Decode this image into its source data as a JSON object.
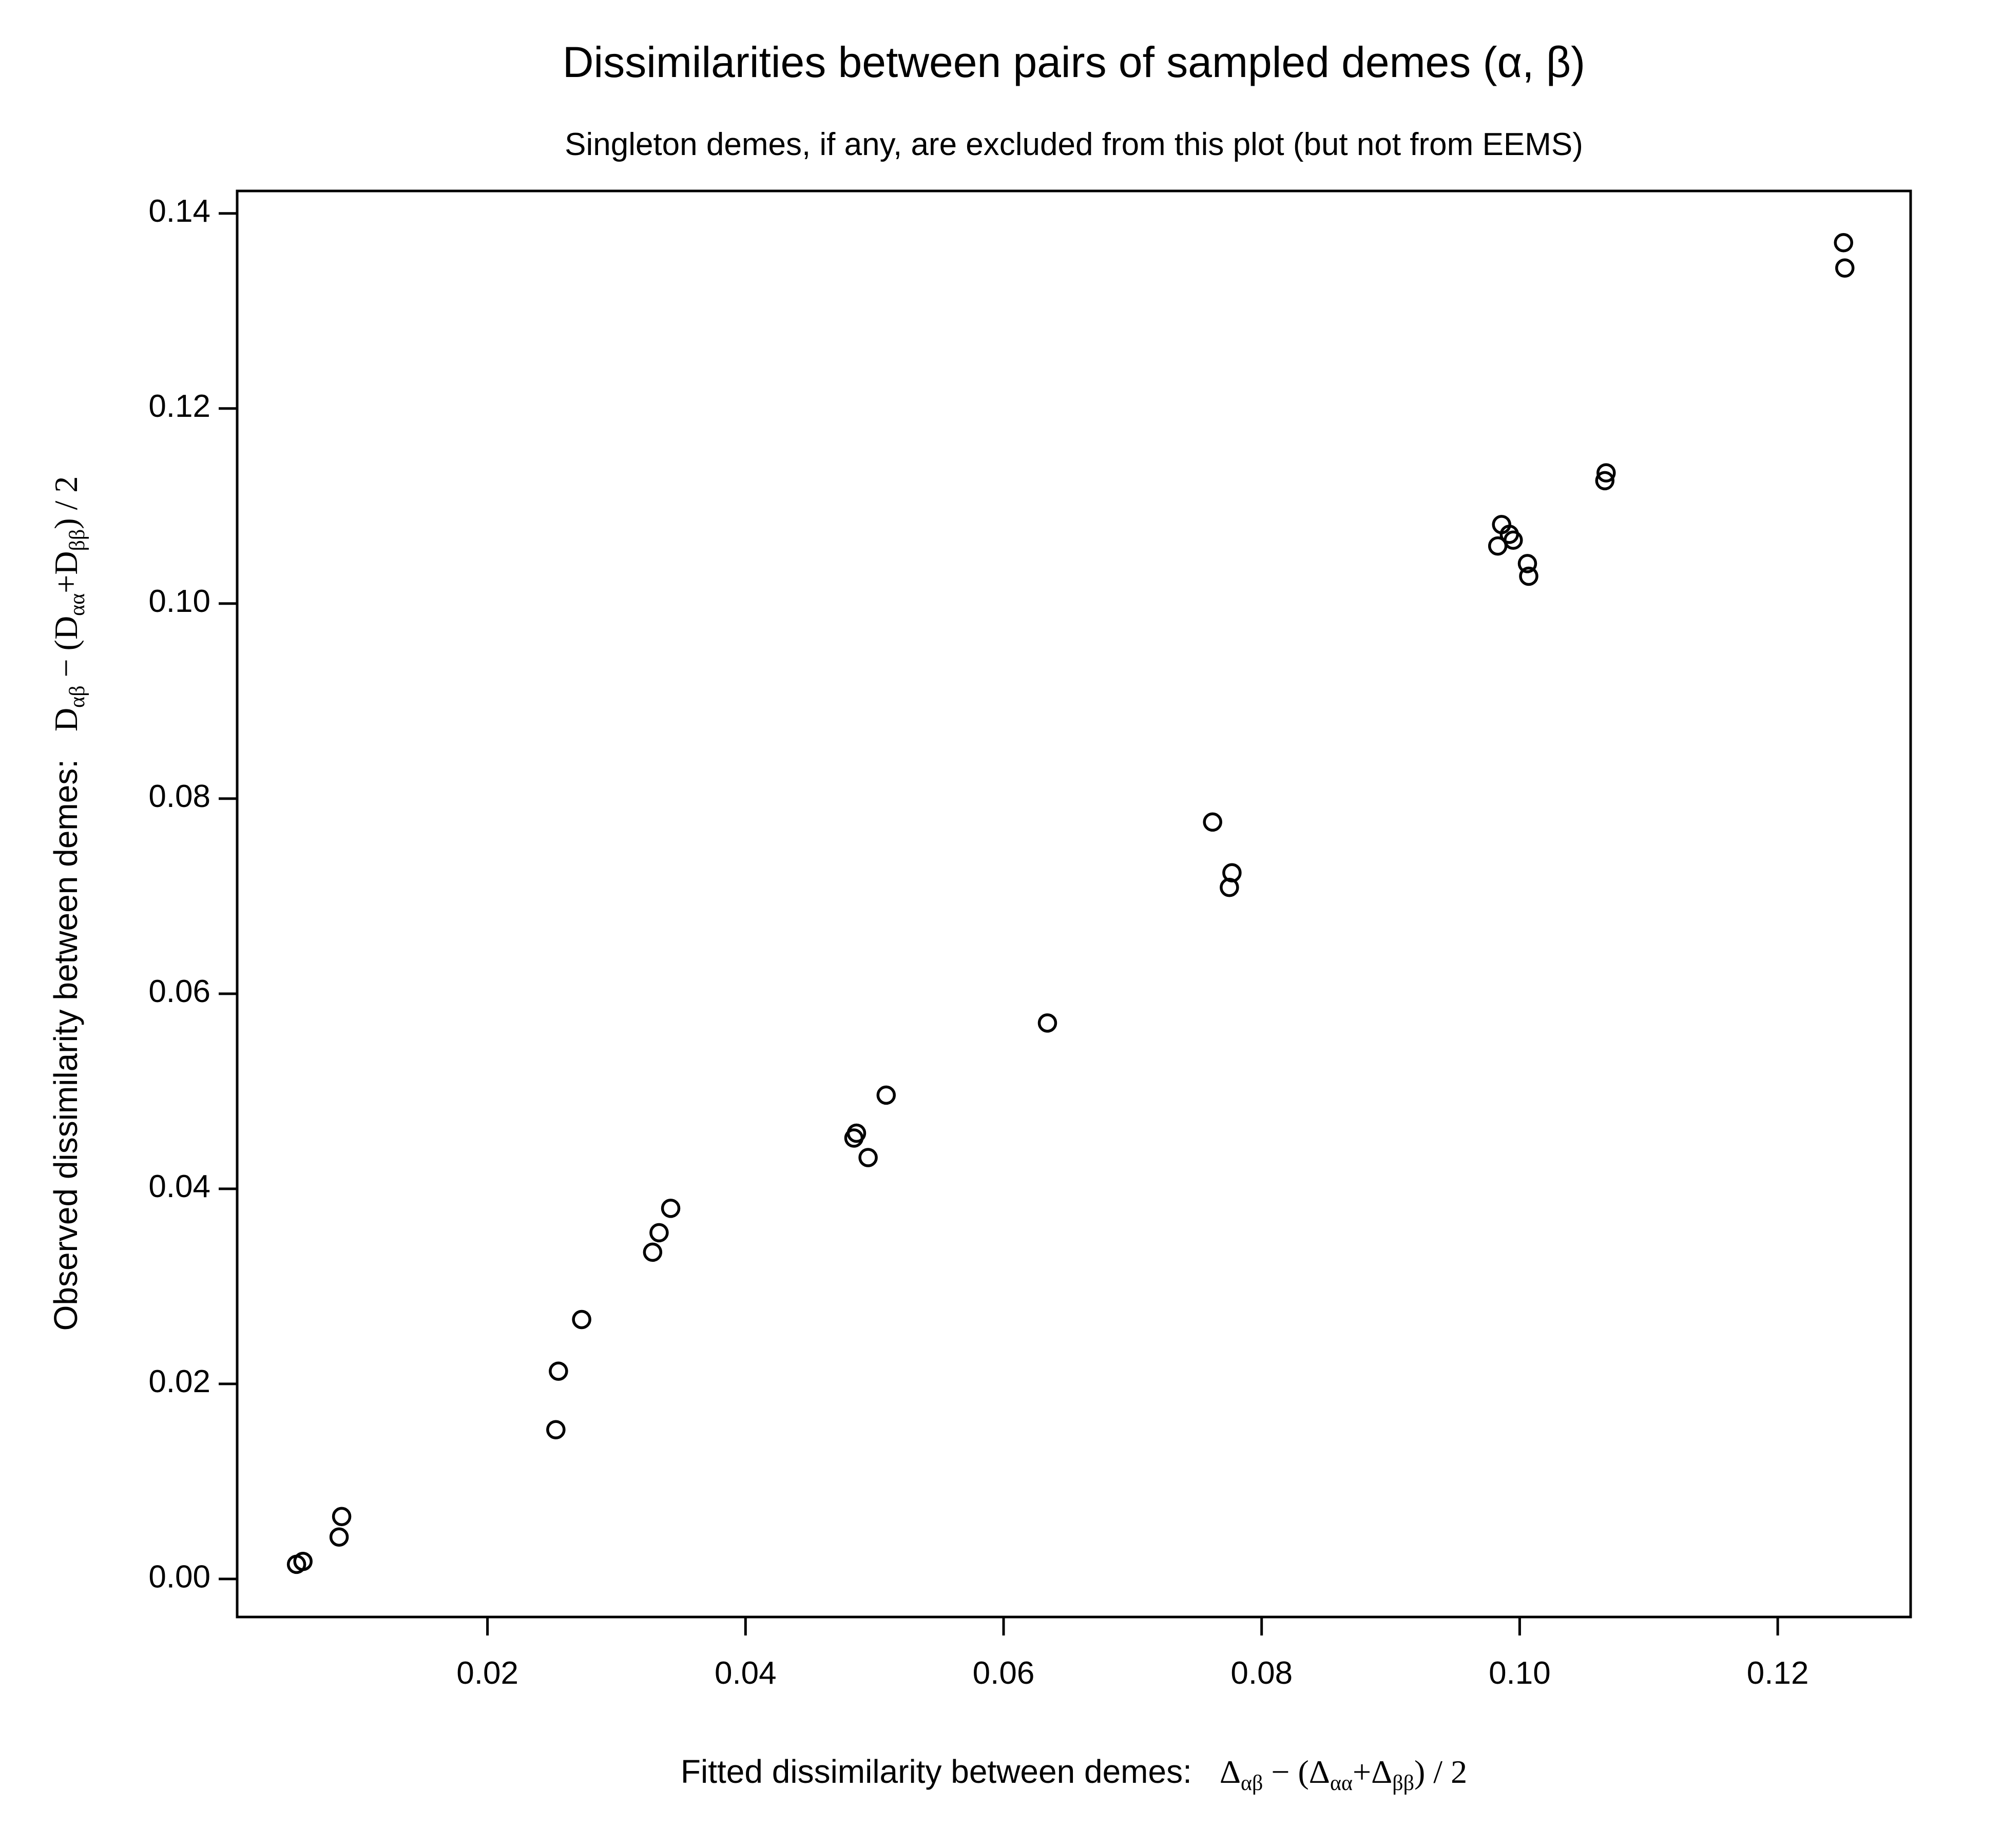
{
  "chart_data": {
    "type": "scatter",
    "title": "Dissimilarities between pairs of sampled demes (α, β)",
    "subtitle": "Singleton demes, if any, are excluded from this plot (but not from EEMS)",
    "xlabel": {
      "text": "Fitted dissimilarity between demes:",
      "math": "Δαβ − (Δαα+Δββ) / 2",
      "parts": [
        {
          "t": "Δ"
        },
        {
          "t": "αβ",
          "sub": true
        },
        {
          "t": " − (Δ"
        },
        {
          "t": "αα",
          "sub": true
        },
        {
          "t": "+Δ"
        },
        {
          "t": "ββ",
          "sub": true
        },
        {
          "t": ") / 2"
        }
      ]
    },
    "ylabel": {
      "text": "Observed dissimilarity between demes:",
      "math": "Dαβ − (Dαα+Dββ) / 2",
      "parts": [
        {
          "t": "D"
        },
        {
          "t": "αβ",
          "sub": true
        },
        {
          "t": " − (D"
        },
        {
          "t": "αα",
          "sub": true
        },
        {
          "t": "+D"
        },
        {
          "t": "ββ",
          "sub": true
        },
        {
          "t": ") / 2"
        }
      ]
    },
    "xlim": [
      0.0006,
      0.1303
    ],
    "ylim": [
      -0.0039,
      0.1423
    ],
    "xticks": [
      0.02,
      0.04,
      0.06,
      0.08,
      0.1,
      0.12
    ],
    "xtick_labels": [
      "0.02",
      "0.04",
      "0.06",
      "0.08",
      "0.10",
      "0.12"
    ],
    "yticks": [
      0.0,
      0.02,
      0.04,
      0.06,
      0.08,
      0.1,
      0.12,
      0.14
    ],
    "ytick_labels": [
      "0.00",
      "0.02",
      "0.04",
      "0.06",
      "0.08",
      "0.10",
      "0.12",
      "0.14"
    ],
    "grid": false,
    "legend": "none",
    "marker": "open-circle",
    "color": "#000000",
    "points": [
      {
        "x": 0.0052,
        "y": 0.0015
      },
      {
        "x": 0.0057,
        "y": 0.0018
      },
      {
        "x": 0.0085,
        "y": 0.0043
      },
      {
        "x": 0.0087,
        "y": 0.0064
      },
      {
        "x": 0.0253,
        "y": 0.0153
      },
      {
        "x": 0.0255,
        "y": 0.0213
      },
      {
        "x": 0.0273,
        "y": 0.0266
      },
      {
        "x": 0.0328,
        "y": 0.0335
      },
      {
        "x": 0.0333,
        "y": 0.0355
      },
      {
        "x": 0.0342,
        "y": 0.038
      },
      {
        "x": 0.0484,
        "y": 0.0452
      },
      {
        "x": 0.0486,
        "y": 0.0457
      },
      {
        "x": 0.0495,
        "y": 0.0432
      },
      {
        "x": 0.0509,
        "y": 0.0496
      },
      {
        "x": 0.0634,
        "y": 0.057
      },
      {
        "x": 0.0762,
        "y": 0.0776
      },
      {
        "x": 0.0775,
        "y": 0.0709
      },
      {
        "x": 0.0777,
        "y": 0.0724
      },
      {
        "x": 0.0983,
        "y": 0.1059
      },
      {
        "x": 0.0986,
        "y": 0.1081
      },
      {
        "x": 0.0992,
        "y": 0.1071
      },
      {
        "x": 0.0995,
        "y": 0.1065
      },
      {
        "x": 0.1006,
        "y": 0.1041
      },
      {
        "x": 0.1007,
        "y": 0.1028
      },
      {
        "x": 0.1066,
        "y": 0.1126
      },
      {
        "x": 0.1067,
        "y": 0.1134
      },
      {
        "x": 0.1251,
        "y": 0.137
      },
      {
        "x": 0.1252,
        "y": 0.1344
      }
    ]
  }
}
